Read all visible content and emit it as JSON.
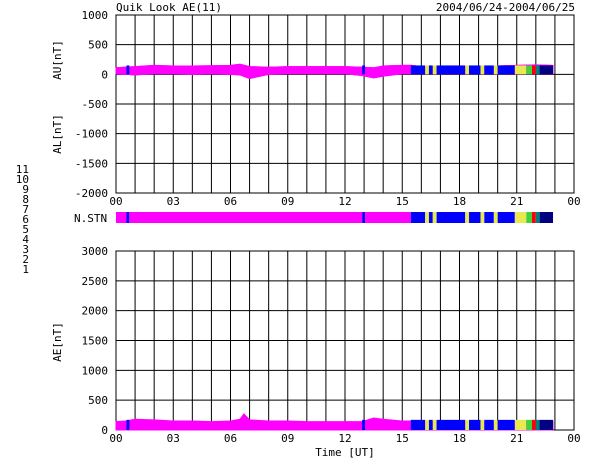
{
  "header": {
    "title": "Quik Look AE(11)",
    "date_range": "2004/06/24-2004/06/25"
  },
  "legend": {
    "stations": [
      {
        "label": "11",
        "color": "#00e0e0"
      },
      {
        "label": "10",
        "color": "#ff00ff"
      },
      {
        "label": "9",
        "color": "#0000ff"
      },
      {
        "label": "8",
        "color": "#e8e850"
      },
      {
        "label": "7",
        "color": "#40d040"
      },
      {
        "label": "6",
        "color": "#ff0000"
      },
      {
        "label": "5",
        "color": "#b0b0b0"
      },
      {
        "label": "4",
        "color": "#808080"
      },
      {
        "label": "3",
        "color": "#008080"
      },
      {
        "label": "2",
        "color": "#800080"
      },
      {
        "label": "1",
        "color": "#000080"
      }
    ]
  },
  "x_axis": {
    "tick_labels": [
      "00",
      "03",
      "06",
      "09",
      "12",
      "15",
      "18",
      "21",
      "00"
    ],
    "xlabel": "Time [UT]"
  },
  "chart_data": [
    {
      "type": "area",
      "panel": "AU/AL",
      "ylabel_top": "AU[nT]",
      "ylabel_bottom": "AL[nT]",
      "ylim": [
        -2000,
        1000
      ],
      "y_ticks": [
        "1000",
        "500",
        "0",
        "-500",
        "-1000",
        "-1500",
        "-2000"
      ],
      "grid": true,
      "x_range_hours": [
        0,
        24
      ],
      "data_end_hour": 22.9,
      "series": [
        {
          "name": "AU",
          "x": [
            0,
            1,
            2,
            3,
            4,
            5,
            6,
            6.5,
            7,
            8,
            9,
            10,
            11,
            12,
            12.9,
            13.5,
            14,
            15,
            15.5,
            16,
            18,
            20,
            21,
            22,
            22.9
          ],
          "values": [
            110,
            130,
            150,
            140,
            140,
            145,
            150,
            170,
            130,
            120,
            130,
            130,
            130,
            130,
            120,
            110,
            140,
            150,
            150,
            130,
            130,
            140,
            150,
            160,
            150
          ]
        },
        {
          "name": "AL",
          "x": [
            0,
            1,
            2,
            3,
            4,
            5,
            6,
            6.5,
            7,
            8,
            9,
            10,
            11,
            12,
            12.9,
            13.5,
            14,
            15,
            15.5,
            16,
            18,
            20,
            21,
            22,
            22.9
          ],
          "values": [
            10,
            -10,
            10,
            10,
            0,
            10,
            0,
            -10,
            -70,
            0,
            10,
            10,
            10,
            10,
            -20,
            -60,
            -30,
            10,
            10,
            10,
            10,
            10,
            10,
            10,
            10
          ]
        }
      ]
    },
    {
      "type": "table",
      "panel": "N.STN",
      "label": "N.STN",
      "segments": [
        {
          "x0": 0.0,
          "x1": 0.55,
          "station": "10"
        },
        {
          "x0": 0.55,
          "x1": 0.7,
          "station": "9"
        },
        {
          "x0": 0.7,
          "x1": 12.9,
          "station": "10"
        },
        {
          "x0": 12.9,
          "x1": 13.05,
          "station": "9"
        },
        {
          "x0": 13.05,
          "x1": 15.45,
          "station": "10"
        },
        {
          "x0": 15.45,
          "x1": 16.2,
          "station": "9"
        },
        {
          "x0": 16.2,
          "x1": 16.4,
          "station": "8"
        },
        {
          "x0": 16.4,
          "x1": 16.6,
          "station": "9"
        },
        {
          "x0": 16.6,
          "x1": 16.8,
          "station": "8"
        },
        {
          "x0": 16.8,
          "x1": 18.3,
          "station": "9"
        },
        {
          "x0": 18.3,
          "x1": 18.5,
          "station": "8"
        },
        {
          "x0": 18.5,
          "x1": 19.1,
          "station": "9"
        },
        {
          "x0": 19.1,
          "x1": 19.3,
          "station": "8"
        },
        {
          "x0": 19.3,
          "x1": 19.8,
          "station": "9"
        },
        {
          "x0": 19.8,
          "x1": 20.0,
          "station": "8"
        },
        {
          "x0": 20.0,
          "x1": 20.9,
          "station": "9"
        },
        {
          "x0": 20.9,
          "x1": 21.5,
          "station": "8"
        },
        {
          "x0": 21.5,
          "x1": 21.8,
          "station": "7"
        },
        {
          "x0": 21.8,
          "x1": 22.0,
          "station": "6"
        },
        {
          "x0": 22.0,
          "x1": 22.2,
          "station": "3"
        },
        {
          "x0": 22.2,
          "x1": 22.9,
          "station": "1"
        }
      ]
    },
    {
      "type": "area",
      "panel": "AE",
      "ylabel": "AE[nT]",
      "ylim": [
        0,
        3000
      ],
      "y_ticks": [
        "3000",
        "2500",
        "2000",
        "1500",
        "1000",
        "500",
        "0"
      ],
      "grid": true,
      "x_range_hours": [
        0,
        24
      ],
      "data_end_hour": 22.9,
      "series": [
        {
          "name": "AE",
          "x": [
            0,
            0.5,
            1,
            2,
            3,
            4,
            5,
            6,
            6.5,
            6.7,
            7,
            8,
            9,
            10,
            11,
            12,
            12.9,
            13.5,
            14,
            15,
            15.5,
            16,
            18,
            20,
            21,
            22,
            22.9
          ],
          "values": [
            140,
            150,
            180,
            170,
            150,
            150,
            140,
            150,
            180,
            270,
            170,
            150,
            150,
            140,
            140,
            140,
            140,
            200,
            180,
            150,
            150,
            130,
            130,
            140,
            150,
            160,
            150
          ]
        }
      ]
    }
  ]
}
